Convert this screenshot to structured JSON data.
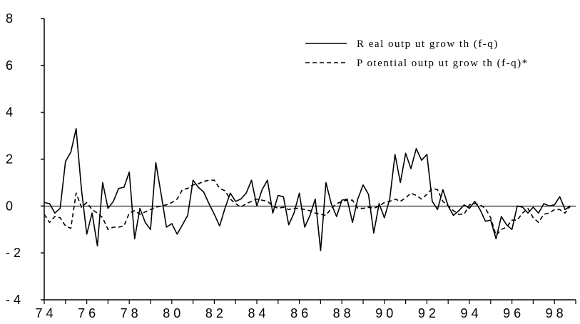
{
  "chart_data": {
    "type": "line",
    "title": "",
    "xlabel": "",
    "ylabel": "",
    "xlim": [
      1974.0,
      1999.0
    ],
    "ylim": [
      -4,
      8
    ],
    "y_ticks": [
      -4,
      -2,
      0,
      2,
      4,
      6,
      8
    ],
    "y_tick_labels": [
      "- 4",
      "- 2",
      "0",
      "2",
      "4",
      "6",
      "8"
    ],
    "x_ticks": [
      1974,
      1976,
      1978,
      1980,
      1982,
      1984,
      1986,
      1988,
      1990,
      1992,
      1994,
      1996,
      1998
    ],
    "x_tick_labels": [
      "7 4",
      "7 6",
      "7 8",
      "8 0",
      "8 2",
      "8 4",
      "8 6",
      "8 8",
      "9 0",
      "9 2",
      "9 4",
      "9 6",
      "9 8"
    ],
    "zero_line": true,
    "grid": false,
    "legend_position": "top-right",
    "series": [
      {
        "name": "R eal outp ut grow th (f-q)",
        "style": "solid",
        "color": "#000000",
        "x": [
          1974.0,
          1974.25,
          1974.5,
          1974.75,
          1975.0,
          1975.25,
          1975.5,
          1975.75,
          1976.0,
          1976.25,
          1976.5,
          1976.75,
          1977.0,
          1977.25,
          1977.5,
          1977.75,
          1978.0,
          1978.25,
          1978.5,
          1978.75,
          1979.0,
          1979.25,
          1979.5,
          1979.75,
          1980.0,
          1980.25,
          1980.5,
          1980.75,
          1981.0,
          1981.25,
          1981.5,
          1981.75,
          1982.0,
          1982.25,
          1982.5,
          1982.75,
          1983.0,
          1983.25,
          1983.5,
          1983.75,
          1984.0,
          1984.25,
          1984.5,
          1984.75,
          1985.0,
          1985.25,
          1985.5,
          1985.75,
          1986.0,
          1986.25,
          1986.5,
          1986.75,
          1987.0,
          1987.25,
          1987.5,
          1987.75,
          1988.0,
          1988.25,
          1988.5,
          1988.75,
          1989.0,
          1989.25,
          1989.5,
          1989.75,
          1990.0,
          1990.25,
          1990.5,
          1990.75,
          1991.0,
          1991.25,
          1991.5,
          1991.75,
          1992.0,
          1992.25,
          1992.5,
          1992.75,
          1993.0,
          1993.25,
          1993.5,
          1993.75,
          1994.0,
          1994.25,
          1994.5,
          1994.75,
          1995.0,
          1995.25,
          1995.5,
          1995.75,
          1996.0,
          1996.25,
          1996.5,
          1996.75,
          1997.0,
          1997.25,
          1997.5,
          1997.75,
          1998.0,
          1998.25,
          1998.5,
          1998.75
        ],
        "y": [
          0.15,
          0.1,
          -0.3,
          -0.1,
          1.9,
          2.3,
          3.3,
          0.7,
          -1.2,
          -0.3,
          -1.7,
          1.0,
          -0.1,
          0.2,
          0.75,
          0.8,
          1.45,
          -1.4,
          -0.1,
          -0.7,
          -1.0,
          1.85,
          0.5,
          -0.9,
          -0.75,
          -1.2,
          -0.8,
          -0.4,
          1.1,
          0.8,
          0.6,
          0.1,
          -0.35,
          -0.85,
          -0.1,
          0.55,
          0.2,
          0.3,
          0.55,
          1.1,
          0.0,
          0.7,
          1.1,
          -0.3,
          0.45,
          0.4,
          -0.8,
          -0.3,
          0.55,
          -0.9,
          -0.4,
          0.3,
          -1.9,
          1.0,
          0.1,
          -0.45,
          0.25,
          0.3,
          -0.7,
          0.3,
          0.9,
          0.5,
          -1.15,
          0.1,
          -0.5,
          0.3,
          2.2,
          1.0,
          2.25,
          1.6,
          2.45,
          1.95,
          2.2,
          0.2,
          -0.15,
          0.7,
          0.0,
          -0.4,
          -0.2,
          0.05,
          -0.1,
          0.2,
          -0.15,
          -0.65,
          -0.6,
          -1.4,
          -0.45,
          -0.8,
          -1.0,
          0.0,
          -0.05,
          -0.3,
          -0.05,
          -0.3,
          0.1,
          0.0,
          0.05,
          0.4,
          -0.15,
          0.0
        ]
      },
      {
        "name": "P otential outp ut grow th (f-q)*",
        "style": "dashed",
        "color": "#000000",
        "x": [
          1974.0,
          1974.25,
          1974.5,
          1974.75,
          1975.0,
          1975.25,
          1975.5,
          1975.75,
          1976.0,
          1976.25,
          1976.5,
          1976.75,
          1977.0,
          1977.25,
          1977.5,
          1977.75,
          1978.0,
          1978.25,
          1978.5,
          1978.75,
          1979.0,
          1979.25,
          1979.5,
          1979.75,
          1980.0,
          1980.25,
          1980.5,
          1980.75,
          1981.0,
          1981.25,
          1981.5,
          1981.75,
          1982.0,
          1982.25,
          1982.5,
          1982.75,
          1983.0,
          1983.25,
          1983.5,
          1983.75,
          1984.0,
          1984.25,
          1984.5,
          1984.75,
          1985.0,
          1985.25,
          1985.5,
          1985.75,
          1986.0,
          1986.25,
          1986.5,
          1986.75,
          1987.0,
          1987.25,
          1987.5,
          1987.75,
          1988.0,
          1988.25,
          1988.5,
          1988.75,
          1989.0,
          1989.25,
          1989.5,
          1989.75,
          1990.0,
          1990.25,
          1990.5,
          1990.75,
          1991.0,
          1991.25,
          1991.5,
          1991.75,
          1992.0,
          1992.25,
          1992.5,
          1992.75,
          1993.0,
          1993.25,
          1993.5,
          1993.75,
          1994.0,
          1994.25,
          1994.5,
          1994.75,
          1995.0,
          1995.25,
          1995.5,
          1995.75,
          1996.0,
          1996.25,
          1996.5,
          1996.75,
          1997.0,
          1997.25,
          1997.5,
          1997.75,
          1998.0,
          1998.25,
          1998.5,
          1998.75
        ],
        "y": [
          -0.35,
          -0.7,
          -0.45,
          -0.5,
          -0.85,
          -0.95,
          0.55,
          -0.05,
          0.15,
          -0.15,
          -0.3,
          -0.5,
          -1.0,
          -0.9,
          -0.9,
          -0.85,
          -0.3,
          -0.2,
          -0.35,
          -0.25,
          -0.15,
          -0.05,
          0.0,
          0.05,
          0.15,
          0.3,
          0.7,
          0.75,
          0.9,
          0.95,
          1.05,
          1.1,
          1.1,
          0.75,
          0.65,
          0.3,
          0.1,
          -0.05,
          0.1,
          0.2,
          0.3,
          0.25,
          0.2,
          0.0,
          -0.1,
          -0.05,
          -0.15,
          -0.1,
          -0.1,
          -0.15,
          -0.2,
          -0.3,
          -0.35,
          -0.4,
          -0.1,
          0.1,
          0.2,
          0.25,
          0.25,
          -0.1,
          -0.1,
          -0.05,
          -0.1,
          0.0,
          0.15,
          0.2,
          0.3,
          0.2,
          0.35,
          0.55,
          0.45,
          0.3,
          0.5,
          0.75,
          0.7,
          0.2,
          0.0,
          -0.2,
          -0.35,
          -0.35,
          0.05,
          0.1,
          0.05,
          -0.1,
          -0.5,
          -1.25,
          -1.0,
          -0.9,
          -0.6,
          -0.6,
          -0.3,
          -0.1,
          -0.5,
          -0.7,
          -0.35,
          -0.3,
          -0.15,
          -0.15,
          -0.3,
          0.0
        ]
      }
    ]
  }
}
